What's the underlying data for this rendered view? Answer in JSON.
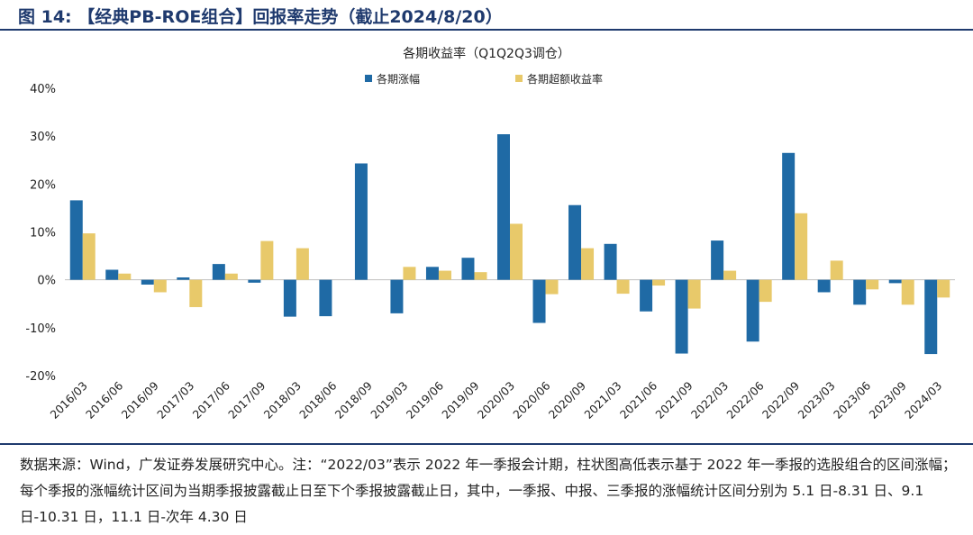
{
  "figure_title": "图 14: 【经典PB-ROE组合】回报率走势（截止2024/8/20）",
  "chart_data": {
    "type": "bar",
    "title": "各期收益率（Q1Q2Q3调仓）",
    "categories": [
      "2016/03",
      "2016/06",
      "2016/09",
      "2017/03",
      "2017/06",
      "2017/09",
      "2018/03",
      "2018/06",
      "2018/09",
      "2019/03",
      "2019/06",
      "2019/09",
      "2020/03",
      "2020/06",
      "2020/09",
      "2021/03",
      "2021/06",
      "2021/09",
      "2022/03",
      "2022/06",
      "2022/09",
      "2023/03",
      "2023/06",
      "2023/09",
      "2024/03"
    ],
    "series": [
      {
        "name": "各期涨幅",
        "color": "#1f6aa5",
        "values": [
          16.6,
          2.1,
          -1.0,
          0.5,
          3.3,
          -0.6,
          -7.7,
          -7.6,
          24.3,
          -7.0,
          2.7,
          4.6,
          30.4,
          -9.0,
          15.6,
          7.5,
          -6.6,
          -15.4,
          8.2,
          -12.9,
          26.5,
          -2.6,
          -5.2,
          -0.7,
          -15.5
        ]
      },
      {
        "name": "各期超额收益率",
        "color": "#e8c96a",
        "values": [
          9.7,
          1.3,
          -2.6,
          -5.7,
          1.3,
          8.1,
          6.6,
          0.0,
          0.0,
          2.7,
          1.9,
          1.6,
          11.7,
          -3.0,
          6.6,
          -2.9,
          -1.2,
          -6.0,
          1.9,
          -4.6,
          13.9,
          4.0,
          -2.0,
          -5.2,
          -3.7
        ]
      }
    ],
    "ylim": [
      -20,
      40
    ],
    "yticks": [
      -20,
      -10,
      0,
      10,
      20,
      30,
      40
    ],
    "ytick_labels": [
      "-20%",
      "-10%",
      "0%",
      "10%",
      "20%",
      "30%",
      "40%"
    ],
    "legend_position": "top-center",
    "grid": false
  },
  "source_note": "数据来源：Wind，广发证券发展研究中心。注：“2022/03”表示 2022 年一季报会计期，柱状图高低表示基于 2022 年一季报的选股组合的区间涨幅；每个季报的涨幅统计区间为当期季报披露截止日至下个季报披露截止日，其中，一季报、中报、三季报的涨幅统计区间分别为 5.1 日-8.31 日、9.1 日-10.31 日，11.1 日-次年 4.30 日"
}
